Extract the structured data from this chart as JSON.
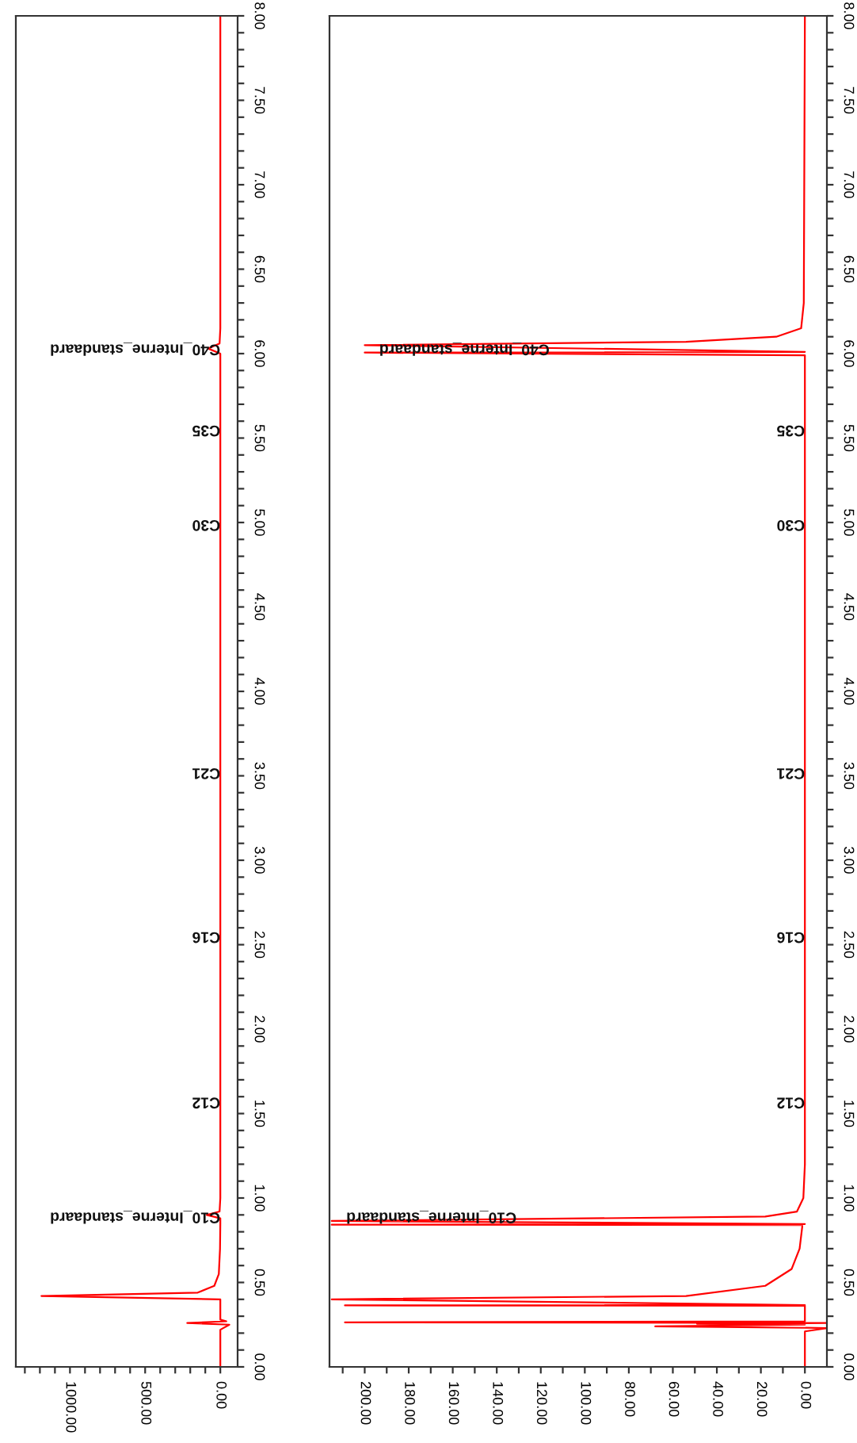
{
  "chart_data": [
    {
      "type": "line",
      "orientation": "horizontal",
      "grid": false,
      "legend": false,
      "x": [
        0,
        0.22,
        0.25,
        0.26,
        0.27,
        0.28,
        0.3,
        0.4,
        0.42,
        0.44,
        0.48,
        0.55,
        0.7,
        0.85,
        0.88,
        0.9,
        0.92,
        1.0,
        6.0,
        6.03,
        6.06,
        6.15,
        8.0
      ],
      "series": [
        {
          "color": "#ff0000",
          "values": [
            0,
            0,
            -60,
            220,
            -40,
            0,
            0,
            0,
            1190,
            150,
            40,
            10,
            2,
            0,
            0,
            90,
            5,
            0,
            0,
            80,
            5,
            0,
            0
          ]
        }
      ],
      "xlim": [
        1360,
        -115
      ],
      "xticks": [
        {
          "value": 0,
          "label": "0.00"
        },
        {
          "value": 100,
          "label": null
        },
        {
          "value": 200,
          "label": null
        },
        {
          "value": 300,
          "label": null
        },
        {
          "value": 400,
          "label": null
        },
        {
          "value": 500,
          "label": "500.00"
        },
        {
          "value": 600,
          "label": null
        },
        {
          "value": 700,
          "label": null
        },
        {
          "value": 800,
          "label": null
        },
        {
          "value": 900,
          "label": null
        },
        {
          "value": 1000,
          "label": "1000.00"
        },
        {
          "value": 1100,
          "label": null
        },
        {
          "value": 1200,
          "label": null
        },
        {
          "value": 1300,
          "label": null
        }
      ],
      "ylim": [
        0,
        8
      ],
      "yticks": [
        {
          "value": 0,
          "label": "0.00"
        },
        {
          "value": 0.1,
          "label": null
        },
        {
          "value": 0.2,
          "label": null
        },
        {
          "value": 0.3,
          "label": null
        },
        {
          "value": 0.4,
          "label": null
        },
        {
          "value": 0.5,
          "label": "0.50"
        },
        {
          "value": 0.6,
          "label": null
        },
        {
          "value": 0.7,
          "label": null
        },
        {
          "value": 0.8,
          "label": null
        },
        {
          "value": 0.9,
          "label": null
        },
        {
          "value": 1.0,
          "label": "1.00"
        },
        {
          "value": 1.1,
          "label": null
        },
        {
          "value": 1.2,
          "label": null
        },
        {
          "value": 1.3,
          "label": null
        },
        {
          "value": 1.4,
          "label": null
        },
        {
          "value": 1.5,
          "label": "1.50"
        },
        {
          "value": 1.6,
          "label": null
        },
        {
          "value": 1.7,
          "label": null
        },
        {
          "value": 1.8,
          "label": null
        },
        {
          "value": 1.9,
          "label": null
        },
        {
          "value": 2.0,
          "label": "2.00"
        },
        {
          "value": 2.1,
          "label": null
        },
        {
          "value": 2.2,
          "label": null
        },
        {
          "value": 2.3,
          "label": null
        },
        {
          "value": 2.4,
          "label": null
        },
        {
          "value": 2.5,
          "label": "2.50"
        },
        {
          "value": 2.6,
          "label": null
        },
        {
          "value": 2.7,
          "label": null
        },
        {
          "value": 2.8,
          "label": null
        },
        {
          "value": 2.9,
          "label": null
        },
        {
          "value": 3.0,
          "label": "3.00"
        },
        {
          "value": 3.1,
          "label": null
        },
        {
          "value": 3.2,
          "label": null
        },
        {
          "value": 3.3,
          "label": null
        },
        {
          "value": 3.4,
          "label": null
        },
        {
          "value": 3.5,
          "label": "3.50"
        },
        {
          "value": 3.6,
          "label": null
        },
        {
          "value": 3.7,
          "label": null
        },
        {
          "value": 3.8,
          "label": null
        },
        {
          "value": 3.9,
          "label": null
        },
        {
          "value": 4.0,
          "label": "4.00"
        },
        {
          "value": 4.1,
          "label": null
        },
        {
          "value": 4.2,
          "label": null
        },
        {
          "value": 4.3,
          "label": null
        },
        {
          "value": 4.4,
          "label": null
        },
        {
          "value": 4.5,
          "label": "4.50"
        },
        {
          "value": 4.6,
          "label": null
        },
        {
          "value": 4.7,
          "label": null
        },
        {
          "value": 4.8,
          "label": null
        },
        {
          "value": 4.9,
          "label": null
        },
        {
          "value": 5.0,
          "label": "5.00"
        },
        {
          "value": 5.1,
          "label": null
        },
        {
          "value": 5.2,
          "label": null
        },
        {
          "value": 5.3,
          "label": null
        },
        {
          "value": 5.4,
          "label": null
        },
        {
          "value": 5.5,
          "label": "5.50"
        },
        {
          "value": 5.6,
          "label": null
        },
        {
          "value": 5.7,
          "label": null
        },
        {
          "value": 5.8,
          "label": null
        },
        {
          "value": 5.9,
          "label": null
        },
        {
          "value": 6.0,
          "label": "6.00"
        },
        {
          "value": 6.1,
          "label": null
        },
        {
          "value": 6.2,
          "label": null
        },
        {
          "value": 6.3,
          "label": null
        },
        {
          "value": 6.4,
          "label": null
        },
        {
          "value": 6.5,
          "label": "6.50"
        },
        {
          "value": 6.6,
          "label": null
        },
        {
          "value": 6.7,
          "label": null
        },
        {
          "value": 6.8,
          "label": null
        },
        {
          "value": 6.9,
          "label": null
        },
        {
          "value": 7.0,
          "label": "7.00"
        },
        {
          "value": 7.1,
          "label": null
        },
        {
          "value": 7.2,
          "label": null
        },
        {
          "value": 7.3,
          "label": null
        },
        {
          "value": 7.4,
          "label": null
        },
        {
          "value": 7.5,
          "label": "7.50"
        },
        {
          "value": 7.6,
          "label": null
        },
        {
          "value": 7.7,
          "label": null
        },
        {
          "value": 7.8,
          "label": null
        },
        {
          "value": 7.9,
          "label": null
        },
        {
          "value": 8.0,
          "label": "8.00"
        }
      ],
      "annotations": [
        {
          "text": "C10_Interne_standaard",
          "x": 0,
          "y": 0.89
        },
        {
          "text": "C12",
          "x": 0,
          "y": 1.57
        },
        {
          "text": "C16",
          "x": 0,
          "y": 2.55
        },
        {
          "text": "C21",
          "x": 0,
          "y": 3.52
        },
        {
          "text": "C30",
          "x": 0,
          "y": 4.99
        },
        {
          "text": "C35",
          "x": 0,
          "y": 5.55
        },
        {
          "text": "C40_Interne_standaard",
          "x": 0,
          "y": 6.03
        }
      ]
    },
    {
      "type": "line",
      "orientation": "horizontal",
      "grid": false,
      "legend": false,
      "x": [
        0,
        0.21,
        0.23,
        0.24,
        0.25,
        0.255,
        0.26,
        0.264,
        0.27,
        0.362,
        0.364,
        0.366,
        0.4,
        0.42,
        0.48,
        0.58,
        0.7,
        0.83,
        0.84,
        0.842,
        0.846,
        0.864,
        0.89,
        0.92,
        1.0,
        1.2,
        5.99,
        6.006,
        6.01,
        6.05,
        6.07,
        6.1,
        6.15,
        6.3,
        8.0
      ],
      "series": [
        {
          "color": "#ff0000",
          "values": [
            0,
            0,
            -10,
            68,
            0,
            49,
            -10,
            209,
            0,
            0,
            209,
            0,
            215,
            54,
            18,
            6,
            2.4,
            1.2,
            1.2,
            215,
            0,
            215,
            18,
            3.6,
            0.7,
            0,
            0,
            200,
            0,
            200,
            54,
            13,
            1.7,
            0.5,
            0
          ]
        }
      ],
      "xlim": [
        216,
        -10
      ],
      "xticks": [
        {
          "value": 0,
          "label": "0.00"
        },
        {
          "value": 10,
          "label": null
        },
        {
          "value": 20,
          "label": "20.00"
        },
        {
          "value": 30,
          "label": null
        },
        {
          "value": 40,
          "label": "40.00"
        },
        {
          "value": 50,
          "label": null
        },
        {
          "value": 60,
          "label": "60.00"
        },
        {
          "value": 70,
          "label": null
        },
        {
          "value": 80,
          "label": "80.00"
        },
        {
          "value": 90,
          "label": null
        },
        {
          "value": 100,
          "label": "100.00"
        },
        {
          "value": 110,
          "label": null
        },
        {
          "value": 120,
          "label": "120.00"
        },
        {
          "value": 130,
          "label": null
        },
        {
          "value": 140,
          "label": "140.00"
        },
        {
          "value": 150,
          "label": null
        },
        {
          "value": 160,
          "label": "160.00"
        },
        {
          "value": 170,
          "label": null
        },
        {
          "value": 180,
          "label": "180.00"
        },
        {
          "value": 190,
          "label": null
        },
        {
          "value": 200,
          "label": "200.00"
        },
        {
          "value": 210,
          "label": null
        }
      ],
      "ylim": [
        0,
        8
      ],
      "yticks": [
        {
          "value": 0,
          "label": "0.00"
        },
        {
          "value": 0.1,
          "label": null
        },
        {
          "value": 0.2,
          "label": null
        },
        {
          "value": 0.3,
          "label": null
        },
        {
          "value": 0.4,
          "label": null
        },
        {
          "value": 0.5,
          "label": "0.50"
        },
        {
          "value": 0.6,
          "label": null
        },
        {
          "value": 0.7,
          "label": null
        },
        {
          "value": 0.8,
          "label": null
        },
        {
          "value": 0.9,
          "label": null
        },
        {
          "value": 1.0,
          "label": "1.00"
        },
        {
          "value": 1.1,
          "label": null
        },
        {
          "value": 1.2,
          "label": null
        },
        {
          "value": 1.3,
          "label": null
        },
        {
          "value": 1.4,
          "label": null
        },
        {
          "value": 1.5,
          "label": "1.50"
        },
        {
          "value": 1.6,
          "label": null
        },
        {
          "value": 1.7,
          "label": null
        },
        {
          "value": 1.8,
          "label": null
        },
        {
          "value": 1.9,
          "label": null
        },
        {
          "value": 2.0,
          "label": "2.00"
        },
        {
          "value": 2.1,
          "label": null
        },
        {
          "value": 2.2,
          "label": null
        },
        {
          "value": 2.3,
          "label": null
        },
        {
          "value": 2.4,
          "label": null
        },
        {
          "value": 2.5,
          "label": "2.50"
        },
        {
          "value": 2.6,
          "label": null
        },
        {
          "value": 2.7,
          "label": null
        },
        {
          "value": 2.8,
          "label": null
        },
        {
          "value": 2.9,
          "label": null
        },
        {
          "value": 3.0,
          "label": "3.00"
        },
        {
          "value": 3.1,
          "label": null
        },
        {
          "value": 3.2,
          "label": null
        },
        {
          "value": 3.3,
          "label": null
        },
        {
          "value": 3.4,
          "label": null
        },
        {
          "value": 3.5,
          "label": "3.50"
        },
        {
          "value": 3.6,
          "label": null
        },
        {
          "value": 3.7,
          "label": null
        },
        {
          "value": 3.8,
          "label": null
        },
        {
          "value": 3.9,
          "label": null
        },
        {
          "value": 4.0,
          "label": "4.00"
        },
        {
          "value": 4.1,
          "label": null
        },
        {
          "value": 4.2,
          "label": null
        },
        {
          "value": 4.3,
          "label": null
        },
        {
          "value": 4.4,
          "label": null
        },
        {
          "value": 4.5,
          "label": "4.50"
        },
        {
          "value": 4.6,
          "label": null
        },
        {
          "value": 4.7,
          "label": null
        },
        {
          "value": 4.8,
          "label": null
        },
        {
          "value": 4.9,
          "label": null
        },
        {
          "value": 5.0,
          "label": "5.00"
        },
        {
          "value": 5.1,
          "label": null
        },
        {
          "value": 5.2,
          "label": null
        },
        {
          "value": 5.3,
          "label": null
        },
        {
          "value": 5.4,
          "label": null
        },
        {
          "value": 5.5,
          "label": "5.50"
        },
        {
          "value": 5.6,
          "label": null
        },
        {
          "value": 5.7,
          "label": null
        },
        {
          "value": 5.8,
          "label": null
        },
        {
          "value": 5.9,
          "label": null
        },
        {
          "value": 6.0,
          "label": "6.00"
        },
        {
          "value": 6.1,
          "label": null
        },
        {
          "value": 6.2,
          "label": null
        },
        {
          "value": 6.3,
          "label": null
        },
        {
          "value": 6.4,
          "label": null
        },
        {
          "value": 6.5,
          "label": "6.50"
        },
        {
          "value": 6.6,
          "label": null
        },
        {
          "value": 6.7,
          "label": null
        },
        {
          "value": 6.8,
          "label": null
        },
        {
          "value": 6.9,
          "label": null
        },
        {
          "value": 7.0,
          "label": "7.00"
        },
        {
          "value": 7.1,
          "label": null
        },
        {
          "value": 7.2,
          "label": null
        },
        {
          "value": 7.3,
          "label": null
        },
        {
          "value": 7.4,
          "label": null
        },
        {
          "value": 7.5,
          "label": "7.50"
        },
        {
          "value": 7.6,
          "label": null
        },
        {
          "value": 7.7,
          "label": null
        },
        {
          "value": 7.8,
          "label": null
        },
        {
          "value": 7.9,
          "label": null
        },
        {
          "value": 8.0,
          "label": "8.00"
        }
      ],
      "annotations": [
        {
          "text": "C10_Interne_standaard",
          "x": 131,
          "y": 0.89
        },
        {
          "text": "C12",
          "x": 0,
          "y": 1.57
        },
        {
          "text": "C16",
          "x": 0,
          "y": 2.55
        },
        {
          "text": "C21",
          "x": 0,
          "y": 3.52
        },
        {
          "text": "C30",
          "x": 0,
          "y": 4.99
        },
        {
          "text": "C35",
          "x": 0,
          "y": 5.55
        },
        {
          "text": "C40_Interne_standaard",
          "x": 116,
          "y": 6.03
        }
      ]
    }
  ]
}
